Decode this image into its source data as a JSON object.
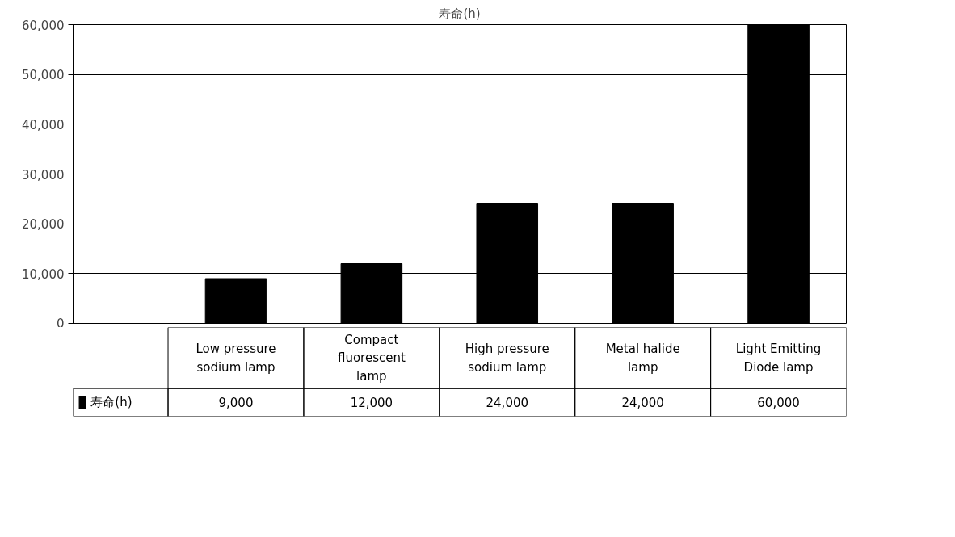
{
  "chart_data": {
    "type": "bar",
    "title": "寿命(h)",
    "categories": [
      "Low pressure sodium lamp",
      "Compact fluorescent lamp",
      "High pressure sodium lamp",
      "Metal halide lamp",
      "Light Emitting Diode lamp"
    ],
    "series": [
      {
        "name": "寿命(h)",
        "color": "#000000",
        "values": [
          9000,
          12000,
          24000,
          24000,
          60000
        ],
        "value_labels": [
          "9,000",
          "12,000",
          "24,000",
          "24,000",
          "60,000"
        ]
      }
    ],
    "ylim": [
      0,
      60000
    ],
    "yticks": [
      {
        "value": 0,
        "label": "0"
      },
      {
        "value": 10000,
        "label": "10,000"
      },
      {
        "value": 20000,
        "label": "20,000"
      },
      {
        "value": 30000,
        "label": "30,000"
      },
      {
        "value": 40000,
        "label": "40,000"
      },
      {
        "value": 50000,
        "label": "50,000"
      },
      {
        "value": 60000,
        "label": "60,000"
      }
    ],
    "grid": "y",
    "legend": "bottom",
    "tick_labels": "y"
  }
}
